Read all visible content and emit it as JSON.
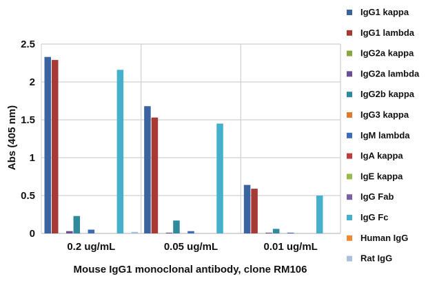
{
  "chart_data": {
    "type": "bar",
    "title": "",
    "xlabel": "Mouse IgG1 monoclonal antibody, clone RM106",
    "ylabel": "Abs (405 nm)",
    "ylim": [
      0,
      2.5
    ],
    "yticks": [
      0,
      0.5,
      1,
      1.5,
      2,
      2.5
    ],
    "ytick_labels": [
      "0",
      "0.5",
      "1",
      "1.5",
      "2",
      "2.5"
    ],
    "grid": true,
    "legend_position": "right",
    "categories": [
      "0.2 ug/mL",
      "0.05 ug/mL",
      "0.01 ug/mL"
    ],
    "series": [
      {
        "name": "IgG1 kappa",
        "color": "#3a63a0",
        "values": [
          2.33,
          1.68,
          0.64
        ]
      },
      {
        "name": "IgG1 lambda",
        "color": "#a83a36",
        "values": [
          2.29,
          1.53,
          0.59
        ]
      },
      {
        "name": "IgG2a kappa",
        "color": "#86a640",
        "values": [
          0.0,
          0.0,
          0.0
        ]
      },
      {
        "name": "IgG2a lambda",
        "color": "#6a4f92",
        "values": [
          0.03,
          0.01,
          0.01
        ]
      },
      {
        "name": "IgG2b kappa",
        "color": "#2f8a9e",
        "values": [
          0.23,
          0.17,
          0.06
        ]
      },
      {
        "name": "IgG3 kappa",
        "color": "#e07a2c",
        "values": [
          0.0,
          0.0,
          0.0
        ]
      },
      {
        "name": "IgM lambda",
        "color": "#3a6cb8",
        "values": [
          0.05,
          0.03,
          0.01
        ]
      },
      {
        "name": "IgA kappa",
        "color": "#c23b3b",
        "values": [
          0.0,
          0.0,
          0.0
        ]
      },
      {
        "name": "IgE kappa",
        "color": "#96bd4a",
        "values": [
          0.0,
          0.0,
          0.0
        ]
      },
      {
        "name": "IgG Fab",
        "color": "#7b5ea8",
        "values": [
          0.0,
          0.0,
          0.0
        ]
      },
      {
        "name": "IgG Fc",
        "color": "#45b0cc",
        "values": [
          2.16,
          1.45,
          0.5
        ]
      },
      {
        "name": "Human IgG",
        "color": "#f08a30",
        "values": [
          0.0,
          0.0,
          0.0
        ]
      },
      {
        "name": "Rat IgG",
        "color": "#a9bfdc",
        "values": [
          0.02,
          0.0,
          0.0
        ]
      }
    ]
  }
}
